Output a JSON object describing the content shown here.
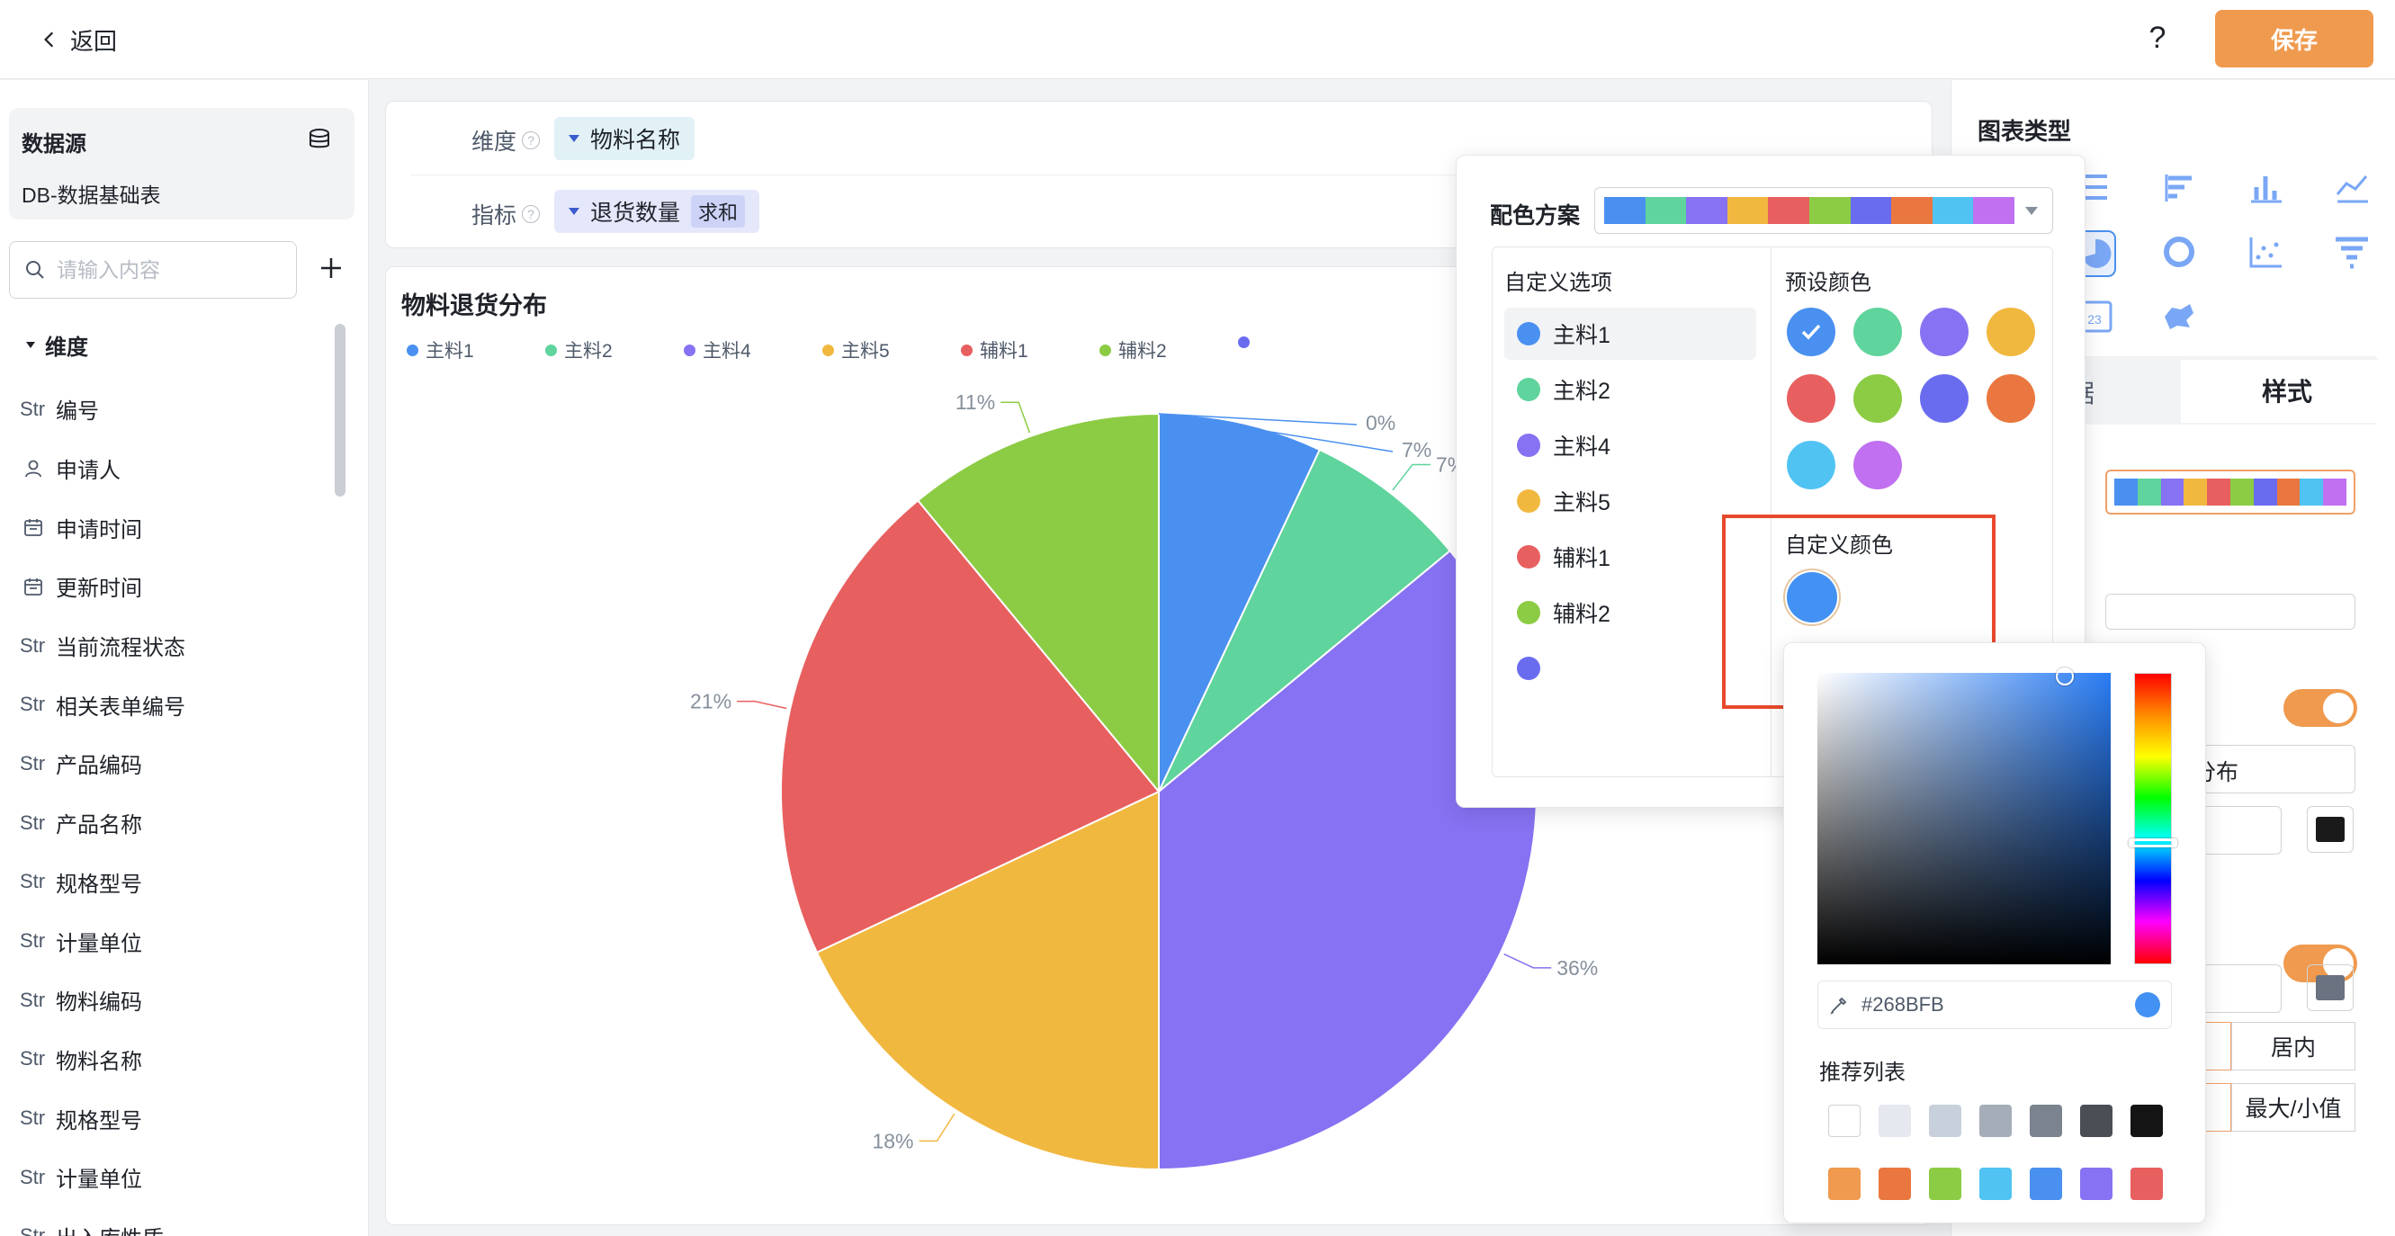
{
  "header": {
    "back_label": "返回",
    "help_label": "?",
    "save_label": "保存"
  },
  "datasource": {
    "title": "数据源",
    "name": "DB-数据基础表"
  },
  "search": {
    "placeholder": "请输入内容"
  },
  "dimension_header": "维度",
  "fields": [
    {
      "type": "Str",
      "label": "编号",
      "icon": "text"
    },
    {
      "type": "",
      "label": "申请人",
      "icon": "user-icon"
    },
    {
      "type": "",
      "label": "申请时间",
      "icon": "calendar-icon"
    },
    {
      "type": "",
      "label": "更新时间",
      "icon": "calendar-icon"
    },
    {
      "type": "Str",
      "label": "当前流程状态",
      "icon": "text"
    },
    {
      "type": "Str",
      "label": "相关表单编号",
      "icon": "text"
    },
    {
      "type": "Str",
      "label": "产品编码",
      "icon": "text"
    },
    {
      "type": "Str",
      "label": "产品名称",
      "icon": "text"
    },
    {
      "type": "Str",
      "label": "规格型号",
      "icon": "text"
    },
    {
      "type": "Str",
      "label": "计量单位",
      "icon": "text"
    },
    {
      "type": "Str",
      "label": "物料编码",
      "icon": "text"
    },
    {
      "type": "Str",
      "label": "物料名称",
      "icon": "text"
    },
    {
      "type": "Str",
      "label": "规格型号",
      "icon": "text"
    },
    {
      "type": "Str",
      "label": "计量单位",
      "icon": "text"
    },
    {
      "type": "Str",
      "label": "出入库性质",
      "icon": "text"
    }
  ],
  "filters": {
    "dimension_label": "维度",
    "dimension_value": "物料名称",
    "indicator_label": "指标",
    "indicator_value": "退货数量",
    "indicator_agg": "求和"
  },
  "chart_data": {
    "type": "pie",
    "title": "物料退货分布",
    "slices": [
      {
        "name": "主料1",
        "value": 7,
        "label": "",
        "color": "#4a90f0"
      },
      {
        "name": "主料2",
        "value": 7,
        "label": "7%",
        "color": "#5fd49c"
      },
      {
        "name": "主料4",
        "value": 36,
        "label": "36%",
        "color": "#8672f2"
      },
      {
        "name": "主料5",
        "value": 18,
        "label": "18%",
        "color": "#f1b840"
      },
      {
        "name": "辅料1",
        "value": 21,
        "label": "21%",
        "color": "#e85f5f"
      },
      {
        "name": "辅料2",
        "value": 11,
        "label": "11%",
        "color": "#8ccc44"
      },
      {
        "name": "",
        "value": 0,
        "label": "0%",
        "color": "#6a6cf0"
      }
    ],
    "extra_labels": [
      "0%",
      "7%"
    ],
    "legend_position": "top-left"
  },
  "right_panel": {
    "title": "图表类型",
    "tab_data": "据",
    "tab_style": "样式",
    "title_input_value": "货分布",
    "seg_inner": "居内",
    "seg_minmax": "最大/小值",
    "font_color": "#1a1a1a",
    "font_color2": "#6b7280"
  },
  "color_popover": {
    "scheme_label": "配色方案",
    "scheme_colors": [
      "#4a90f0",
      "#5fd49c",
      "#8672f2",
      "#f1b840",
      "#e85f5f",
      "#8ccc44",
      "#6a6cf0",
      "#e9773f",
      "#50c3f2",
      "#c070f0"
    ],
    "custom_options_title": "自定义选项",
    "options": [
      {
        "label": "主料1",
        "color": "#4a90f0"
      },
      {
        "label": "主料2",
        "color": "#5fd49c"
      },
      {
        "label": "主料4",
        "color": "#8672f2"
      },
      {
        "label": "主料5",
        "color": "#f1b840"
      },
      {
        "label": "辅料1",
        "color": "#e85f5f"
      },
      {
        "label": "辅料2",
        "color": "#8ccc44"
      },
      {
        "label": "",
        "color": "#6a6cf0"
      }
    ],
    "preset_title": "预设颜色",
    "preset_colors": [
      "#4a90f0",
      "#5fd49c",
      "#8672f2",
      "#f1b840",
      "#e85f5f",
      "#8ccc44",
      "#6a6cf0",
      "#e9773f",
      "#50c3f2",
      "#c070f0"
    ],
    "custom_color_title": "自定义颜色"
  },
  "color_picker": {
    "hex_value": "#268BFB",
    "recommend_title": "推荐列表",
    "recommend_row1": [
      "#ffffff",
      "#e5e8ee",
      "#c8d0dc",
      "#a5adb8",
      "#7b838e",
      "#4a4f56",
      "#141414"
    ],
    "recommend_row2": [
      "#ef9a4e",
      "#e9773f",
      "#8ccc44",
      "#50c3f2",
      "#4a90f0",
      "#8672f2",
      "#e85f5f"
    ]
  }
}
